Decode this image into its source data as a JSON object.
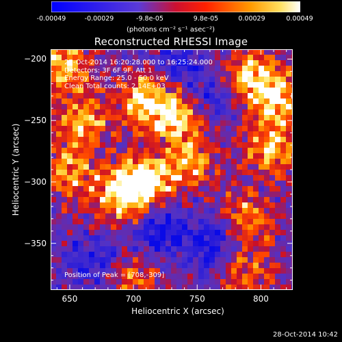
{
  "chart_data": {
    "type": "heatmap",
    "title": "Reconstructed RHESSI Image",
    "xlabel": "Heliocentric X (arcsec)",
    "ylabel": "Heliocentric Y (arcsec)",
    "xlim": [
      635,
      825
    ],
    "ylim": [
      -388,
      -192
    ],
    "x_ticks": [
      650,
      700,
      750,
      800
    ],
    "y_ticks": [
      -200,
      -250,
      -300,
      -350
    ],
    "annotations": [
      "27-Oct-2014 16:20:28.000 to 16:25:24.000",
      "Detectors: 3F 6F 9F, Att 1",
      "Energy Range: 25.0 - 50.0 keV",
      "Clean    Total counts: 2.14E+03"
    ],
    "peak_label": "Position of Peak = [708,-309]",
    "peak": [
      708,
      -309
    ],
    "colorbar": {
      "min": -0.00049,
      "max": 0.00049,
      "tick_labels": [
        "-0.00049",
        "-0.00029",
        "-9.8e-05",
        "9.8e-05",
        "0.00029",
        "0.00049"
      ],
      "units": "(photons cm⁻² s⁻¹ asec⁻²)",
      "colors": [
        "#0000ff",
        "#6a2ad0",
        "#ff0000",
        "#ff8800",
        "#ffffff"
      ]
    },
    "hot_regions": [
      {
        "x": 708,
        "y": -300,
        "intensity": 1.0
      },
      {
        "x": 690,
        "y": -312,
        "intensity": 0.8
      },
      {
        "x": 645,
        "y": -205,
        "intensity": 0.8
      },
      {
        "x": 660,
        "y": -250,
        "intensity": 0.75
      },
      {
        "x": 650,
        "y": -292,
        "intensity": 0.7
      },
      {
        "x": 710,
        "y": -232,
        "intensity": 0.85
      },
      {
        "x": 735,
        "y": -248,
        "intensity": 0.8
      },
      {
        "x": 745,
        "y": -285,
        "intensity": 0.7
      },
      {
        "x": 790,
        "y": -215,
        "intensity": 0.9
      },
      {
        "x": 815,
        "y": -232,
        "intensity": 0.85
      },
      {
        "x": 808,
        "y": -272,
        "intensity": 0.8
      },
      {
        "x": 790,
        "y": -330,
        "intensity": 0.65
      },
      {
        "x": 700,
        "y": -380,
        "intensity": 0.55
      },
      {
        "x": 790,
        "y": -375,
        "intensity": 0.55
      }
    ],
    "cold_regions": [
      {
        "x": 720,
        "y": -340,
        "intensity": 0.9
      },
      {
        "x": 765,
        "y": -230,
        "intensity": 0.75
      },
      {
        "x": 760,
        "y": -350,
        "intensity": 0.8
      },
      {
        "x": 670,
        "y": -365,
        "intensity": 0.6
      },
      {
        "x": 735,
        "y": -205,
        "intensity": 0.6
      }
    ]
  },
  "footer": {
    "timestamp": "28-Oct-2014 10:42"
  }
}
